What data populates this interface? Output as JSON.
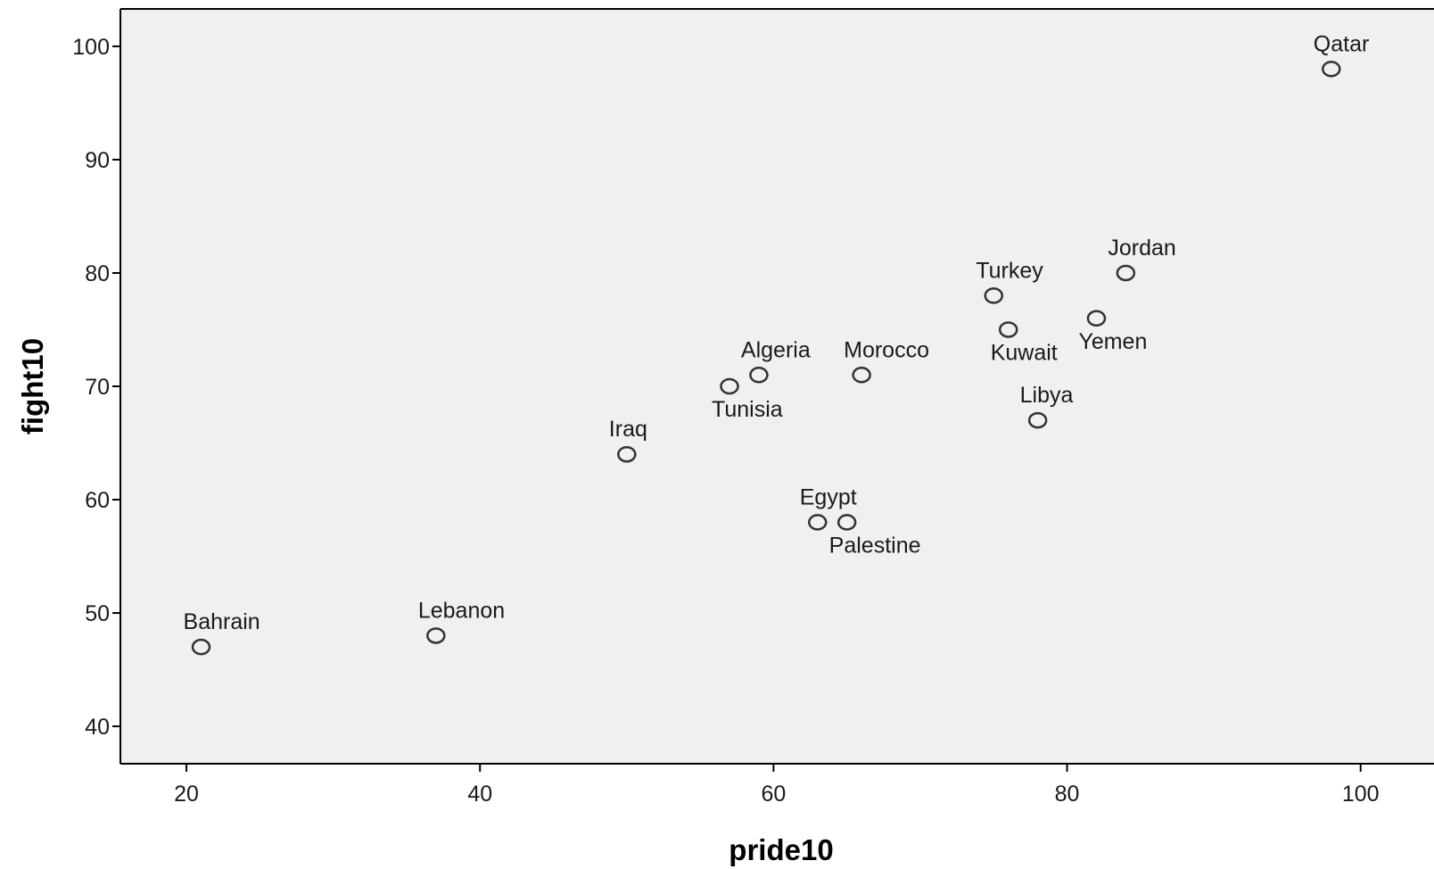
{
  "chart_data": {
    "type": "scatter",
    "xlabel": "pride10",
    "ylabel": "fight10",
    "xlim": [
      15.5,
      105
    ],
    "ylim": [
      36.7,
      103.3
    ],
    "x_ticks": [
      20,
      40,
      60,
      80,
      100
    ],
    "y_ticks": [
      40,
      50,
      60,
      70,
      80,
      90,
      100
    ],
    "grid": false,
    "marker": "open-circle",
    "colors": {
      "plot_background": "#f0f0f0",
      "axis": "#000000",
      "marker_stroke": "#333333",
      "text": "#1a1a1a"
    },
    "points": [
      {
        "label": "Bahrain",
        "x": 21,
        "y": 47,
        "label_pos": "above"
      },
      {
        "label": "Lebanon",
        "x": 37,
        "y": 48,
        "label_pos": "above"
      },
      {
        "label": "Iraq",
        "x": 50,
        "y": 64,
        "label_pos": "above"
      },
      {
        "label": "Tunisia",
        "x": 57,
        "y": 70,
        "label_pos": "below"
      },
      {
        "label": "Algeria",
        "x": 59,
        "y": 71,
        "label_pos": "above"
      },
      {
        "label": "Egypt",
        "x": 63,
        "y": 58,
        "label_pos": "above"
      },
      {
        "label": "Palestine",
        "x": 65,
        "y": 58,
        "label_pos": "below"
      },
      {
        "label": "Morocco",
        "x": 66,
        "y": 71,
        "label_pos": "above"
      },
      {
        "label": "Turkey",
        "x": 75,
        "y": 78,
        "label_pos": "above"
      },
      {
        "label": "Kuwait",
        "x": 76,
        "y": 75,
        "label_pos": "below"
      },
      {
        "label": "Libya",
        "x": 78,
        "y": 67,
        "label_pos": "above"
      },
      {
        "label": "Yemen",
        "x": 82,
        "y": 76,
        "label_pos": "below"
      },
      {
        "label": "Jordan",
        "x": 84,
        "y": 80,
        "label_pos": "above"
      },
      {
        "label": "Qatar",
        "x": 98,
        "y": 98,
        "label_pos": "above"
      }
    ]
  }
}
